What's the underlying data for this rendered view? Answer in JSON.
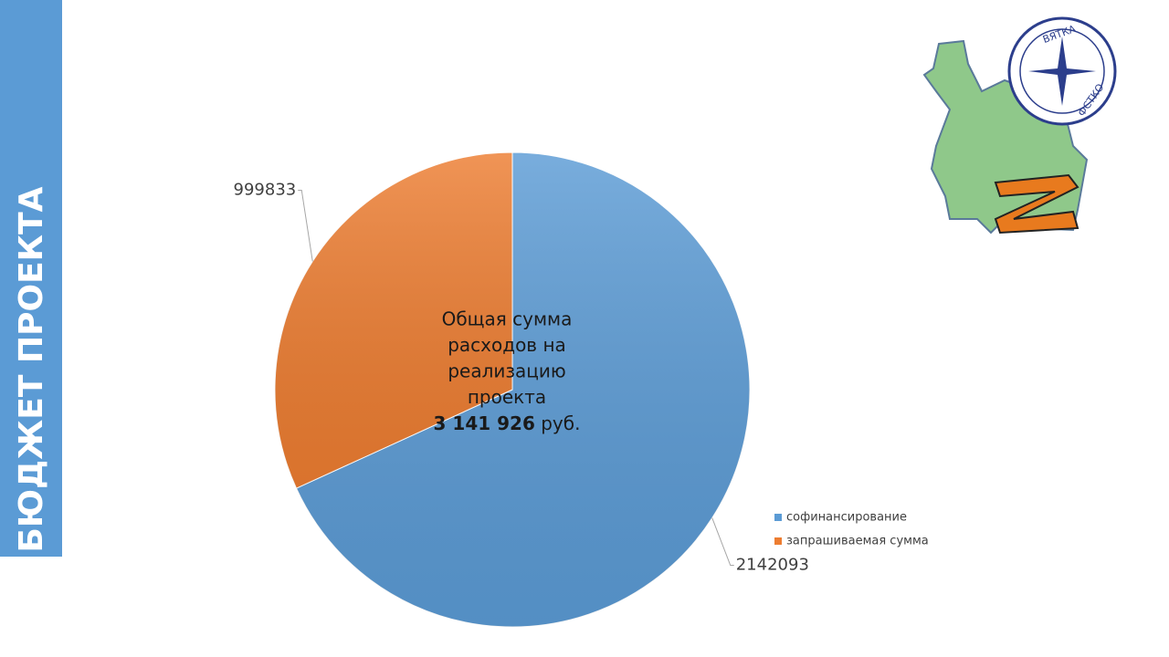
{
  "sidebar_title": "БЮДЖЕТ ПРОЕКТА",
  "logo": {
    "top_text": "ВЯТКА",
    "bottom_text": "ФСТКО"
  },
  "chart_data": {
    "type": "pie",
    "categories": [
      "софинансирование",
      "запрашиваемая сумма"
    ],
    "values": [
      2142093,
      999833
    ],
    "colors": [
      "#5b9bd5",
      "#ed7d31"
    ],
    "legend": "right",
    "annotation": {
      "text": [
        "Общая сумма",
        "расходов на",
        "реализацию",
        "проекта"
      ],
      "total": "3 141 926",
      "unit": "руб."
    }
  }
}
